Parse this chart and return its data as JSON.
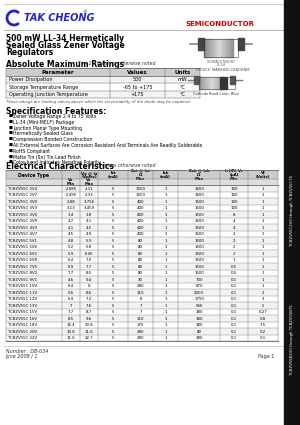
{
  "company": "TAK CHEONG",
  "semiconductor": "SEMICONDUCTOR",
  "title_line1": "500 mW LL-34 Hermetically",
  "title_line2": "Sealed Glass Zener Voltage",
  "title_line3": "Regulators",
  "abs_max_title": "Absolute Maximum Ratings",
  "abs_max_note": "Tⁱ = 25°C unless otherwise noted",
  "abs_max_headers": [
    "Parameter",
    "Values",
    "Units"
  ],
  "abs_max_rows": [
    [
      "Power Dissipation",
      "500",
      "mW"
    ],
    [
      "Storage Temperature Range",
      "-65 to +175",
      "°C"
    ],
    [
      "Operating Junction Temperature",
      "+175",
      "°C"
    ]
  ],
  "abs_max_note2": "These ratings are limiting values above which the serviceability of the diode may be impaired.",
  "device_marking_title": "DEVICE MARKING DIAGRAM",
  "cathode_text": "Cathode Band Color: Blue",
  "spec_title": "Specification Features:",
  "spec_features": [
    "Zener Voltage Range 2.4 to 75 Volts",
    "LL-34 (Mini-MELF) Package",
    "Junction Planar Type Mounting",
    "Hermetically Sealed Glass",
    "Compression Bonded Construction",
    "All External Surfaces Are Corrosion Resistant And Terminals Are Readily Solderable",
    "RoHS Compliant",
    "Matte Tin (Sn) Tin-Lead Finish",
    "Color band Indicates Negative Polarity"
  ],
  "elec_title": "Electrical Characteristics",
  "elec_note": "Tⁱ = 25°C unless otherwise noted",
  "col_headers_top": [
    "Device Type",
    "Vz @ Iz\n(Volts)",
    "Izt\n(mA)",
    "Zzt @ Izt\nΩ\nMax",
    "Izk\n(mA)",
    "Zzk @ Izk\nΩ\nMax",
    "Ir(IR) Vr\n(μA)\nMin",
    "Vf\n(Volts)"
  ],
  "col_headers_sub": [
    "Vz\nMin",
    "Vz\nMax"
  ],
  "table_rows": [
    [
      "TCBZV55C 2V4",
      "2.085",
      "2.11",
      "5",
      "1000",
      "1",
      "1600",
      "100",
      "1"
    ],
    [
      "TCBZV55C 2V7",
      "2.495",
      "2.33",
      "5",
      "1000",
      "1",
      "1600",
      "100",
      "1"
    ],
    [
      "TCBZV55C 3V0",
      "2.88",
      "3.756",
      "5",
      "400",
      "1",
      "1500",
      "100",
      "1"
    ],
    [
      "TCBZV55C 3V3",
      "3.13",
      "3.459",
      "5",
      "400",
      "1",
      "1500",
      "100",
      "1"
    ],
    [
      "TCBZV55C 3V6",
      "3.4",
      "3.8",
      "5",
      "400",
      "1",
      "1500",
      "8",
      "1"
    ],
    [
      "TCBZV55C 3V9",
      "3.7",
      "4.1",
      "5",
      "400",
      "1",
      "1500",
      "4",
      "1"
    ],
    [
      "TCBZV55C 4V3",
      "4.1",
      "4.5",
      "5",
      "400",
      "1",
      "1500",
      "4",
      "1"
    ],
    [
      "TCBZV55C 4V7",
      "4.5",
      "4.9",
      "5",
      "400",
      "1",
      "1500",
      "2",
      "1"
    ],
    [
      "TCBZV55C 5V1",
      "4.8",
      "5.3",
      "5",
      "80",
      "1",
      "1500",
      "2",
      "1"
    ],
    [
      "TCBZV55C 5V6",
      "5.2",
      "5.8",
      "5",
      "80",
      "1",
      "1500",
      "2",
      "1"
    ],
    [
      "TCBZV55C 6V2",
      "5.9",
      "6.45",
      "5",
      "80",
      "1",
      "1500",
      "2",
      "1"
    ],
    [
      "TCBZV55C 6V8",
      "6.4",
      "7.0",
      "5",
      "80",
      "1",
      "1500",
      "1",
      "1"
    ],
    [
      "TCBZV55C 7V5",
      "6.9",
      "7.7",
      "5",
      "80",
      "1",
      "1500",
      "0.5",
      "1"
    ],
    [
      "TCBZV55C 8V2",
      "7.7",
      "8.5",
      "5",
      "80",
      "1",
      "1500",
      "0.5",
      "1"
    ],
    [
      "TCBZV55C 9V1",
      "4.6",
      "9.4",
      "5",
      "30",
      "1",
      "700",
      "0.1",
      "1"
    ],
    [
      "TCBZV55C 10V",
      "6.4",
      "8",
      "5",
      "280",
      "1",
      "870",
      "0.1",
      "1"
    ],
    [
      "TCBZV55C 11V",
      "5.6",
      "8.6",
      "5",
      "110",
      "1",
      "2000",
      "0.1",
      "2"
    ],
    [
      "TCBZV55C 12V",
      "6.4",
      "7.2",
      "5",
      "8",
      "1",
      "1750",
      "0.1",
      "3"
    ],
    [
      "TCBZV55C 13V",
      "7",
      "7.6",
      "5",
      "7",
      "1",
      "540",
      "0.1",
      "5"
    ],
    [
      "TCBZV55C 15V",
      "7.7",
      "8.7",
      "5",
      "7",
      "1",
      "180",
      "0.1",
      "0.27"
    ],
    [
      "TCBZV55C 16V",
      "8.5",
      "9.6",
      "5",
      "110",
      "1",
      "180",
      "0.1",
      "0.8"
    ],
    [
      "TCBZV55C 18V",
      "16.4",
      "10.8",
      "5",
      "175",
      "1",
      "180",
      "0.1",
      "7.5"
    ],
    [
      "TCBZV55C 20V",
      "10.6",
      "11.6",
      "5",
      "280",
      "1",
      "80",
      "0.1",
      "0.2"
    ],
    [
      "TCBZV55C 22V",
      "11.6",
      "12.7",
      "5",
      "280",
      "1",
      "180",
      "0.1",
      "0.1"
    ]
  ],
  "footer_number": "Number : DB-034",
  "footer_date": "June 2008 / 1",
  "page": "Page 1",
  "bg_color": "#ffffff",
  "company_color": "#2222cc",
  "semiconductor_color": "#cc0000",
  "sidebar_color": "#111111",
  "sidebar_text1": "TCBZV55C2V0 through TCBZV55C75",
  "sidebar_text2": "TCBZV55B2V0 through TCBZV55B75"
}
